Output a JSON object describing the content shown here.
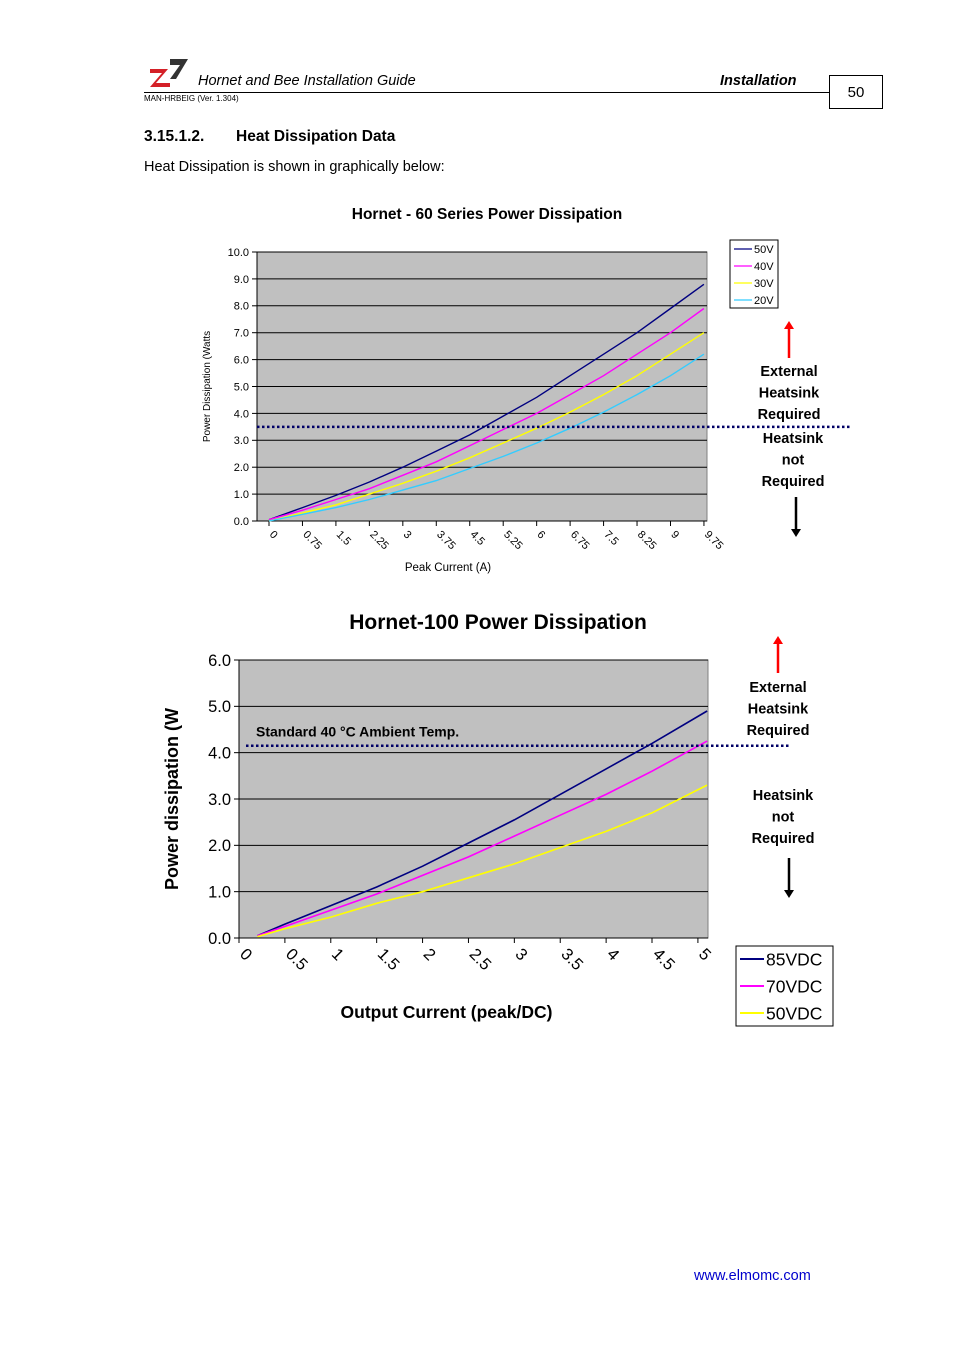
{
  "header": {
    "title": "Hornet and Bee Installation Guide",
    "section": "Installation",
    "doc_id": "MAN-HRBEIG (Ver. 1.304)",
    "page_number": "50",
    "logo_icon": "elmo-logo-icon",
    "logo_colors": {
      "red": "#d42027",
      "dark": "#333333"
    }
  },
  "section": {
    "number": "3.15.1.2.",
    "title": "Heat Dissipation Data",
    "intro": "Heat Dissipation is shown in graphically below:"
  },
  "chart_data": [
    {
      "type": "line",
      "title": "Hornet - 60 Series Power Dissipation",
      "xlabel": "Peak Current (A)",
      "ylabel": "Power Dissipation (Watts",
      "categories": [
        "0",
        "0.75",
        "1.5",
        "2.25",
        "3",
        "3.75",
        "4.5",
        "5.25",
        "6",
        "6.75",
        "7.5",
        "8.25",
        "9",
        "9.75"
      ],
      "ylim": [
        0,
        10
      ],
      "yticks": [
        "0.0",
        "1.0",
        "2.0",
        "3.0",
        "4.0",
        "5.0",
        "6.0",
        "7.0",
        "8.0",
        "9.0",
        "10.0"
      ],
      "grid": true,
      "background": "#c0c0c0",
      "legend_position": "top-right",
      "x": [
        0,
        0.75,
        1.5,
        2.25,
        3,
        3.75,
        4.5,
        5.25,
        6,
        6.75,
        7.5,
        8.25,
        9,
        9.75
      ],
      "series": [
        {
          "name": "50V",
          "color": "#000080",
          "values": [
            0.05,
            0.5,
            0.95,
            1.45,
            2.0,
            2.6,
            3.2,
            3.9,
            4.6,
            5.4,
            6.2,
            7.0,
            7.9,
            8.8
          ]
        },
        {
          "name": "40V",
          "color": "#ff00ff",
          "values": [
            0.05,
            0.4,
            0.8,
            1.2,
            1.7,
            2.2,
            2.8,
            3.4,
            4.0,
            4.7,
            5.4,
            6.2,
            7.0,
            7.9
          ]
        },
        {
          "name": "30V",
          "color": "#ffff00",
          "values": [
            0.0,
            0.3,
            0.6,
            1.0,
            1.4,
            1.85,
            2.35,
            2.9,
            3.45,
            4.05,
            4.7,
            5.4,
            6.2,
            7.0
          ]
        },
        {
          "name": "20V",
          "color": "#33ccff",
          "values": [
            0.0,
            0.25,
            0.5,
            0.8,
            1.15,
            1.5,
            1.95,
            2.4,
            2.9,
            3.45,
            4.05,
            4.7,
            5.4,
            6.2
          ]
        }
      ],
      "threshold": {
        "y": 3.5,
        "color": "#000066"
      },
      "annotations": {
        "above": [
          "External",
          "Heatsink",
          "Required"
        ],
        "below": [
          "Heatsink",
          "not",
          "Required"
        ]
      }
    },
    {
      "type": "line",
      "title": "Hornet-100 Power Dissipation",
      "xlabel": "Output Current (peak/DC)",
      "ylabel": "Power dissipation (W",
      "categories": [
        "0",
        "0.5",
        "1",
        "1.5",
        "2",
        "2.5",
        "3",
        "3.5",
        "4",
        "4.5",
        "5"
      ],
      "ylim": [
        0,
        6
      ],
      "yticks": [
        "0.0",
        "1.0",
        "2.0",
        "3.0",
        "4.0",
        "5.0",
        "6.0"
      ],
      "grid": true,
      "background": "#c0c0c0",
      "legend_position": "bottom-right",
      "x": [
        0.2,
        0.5,
        1,
        1.5,
        2,
        2.5,
        3,
        3.5,
        4,
        4.5,
        5.1
      ],
      "series": [
        {
          "name": "85VDC",
          "color": "#000080",
          "values": [
            0.05,
            0.3,
            0.7,
            1.1,
            1.55,
            2.05,
            2.55,
            3.1,
            3.65,
            4.2,
            4.9
          ]
        },
        {
          "name": "70VDC",
          "color": "#ff00ff",
          "values": [
            0.05,
            0.25,
            0.6,
            0.95,
            1.35,
            1.75,
            2.2,
            2.65,
            3.1,
            3.6,
            4.25
          ]
        },
        {
          "name": "50VDC",
          "color": "#ffff00",
          "values": [
            0.03,
            0.2,
            0.45,
            0.75,
            1.0,
            1.3,
            1.6,
            1.95,
            2.3,
            2.7,
            3.3
          ]
        }
      ],
      "threshold": {
        "y": 4.15,
        "color": "#000066",
        "label": "Standard 40 °C Ambient Temp."
      },
      "annotations": {
        "above": [
          "External",
          "Heatsink",
          "Required"
        ],
        "below": [
          "Heatsink",
          "not",
          "Required"
        ]
      }
    }
  ],
  "footer": {
    "url": "www.elmomc.com"
  }
}
